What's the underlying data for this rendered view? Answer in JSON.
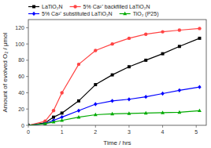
{
  "chart_data": {
    "type": "line",
    "xlabel": "Time / hrs",
    "ylabel": "Amount of evolved O₂ / μmol",
    "x": [
      0,
      0.5,
      0.75,
      1.0,
      1.5,
      2.0,
      2.5,
      3.0,
      3.5,
      4.0,
      4.5,
      5.1
    ],
    "xlim": [
      0,
      5.3
    ],
    "ylim": [
      0,
      130
    ],
    "xticks": [
      0,
      1,
      2,
      3,
      4,
      5
    ],
    "yticks": [
      0,
      20,
      40,
      60,
      80,
      100,
      120
    ],
    "grid": false,
    "legend": "top",
    "series": [
      {
        "name": "LaTiO₂N",
        "color": "#000000",
        "marker": "square",
        "values": [
          0,
          3,
          10,
          15,
          30,
          50,
          62,
          72,
          80,
          88,
          97,
          107
        ]
      },
      {
        "name": "5% Ca²⁺ backfilled LaTiO₂N",
        "color": "#FF4444",
        "marker": "circle",
        "values": [
          0,
          5,
          18,
          40,
          75,
          92,
          100,
          107,
          112,
          115,
          117,
          119
        ]
      },
      {
        "name": "5% Ca²⁺ substituted LaTiO₂N",
        "color": "#0000FF",
        "marker": "diamond",
        "values": [
          0,
          2,
          6,
          10,
          18,
          26,
          30,
          32,
          35,
          39,
          43,
          47
        ]
      },
      {
        "name": "TiO₂ (P25)",
        "color": "#00AA00",
        "marker": "triangle",
        "values": [
          0,
          2,
          4,
          6,
          10,
          13,
          14,
          14.5,
          15,
          15.5,
          16,
          18
        ]
      }
    ]
  }
}
